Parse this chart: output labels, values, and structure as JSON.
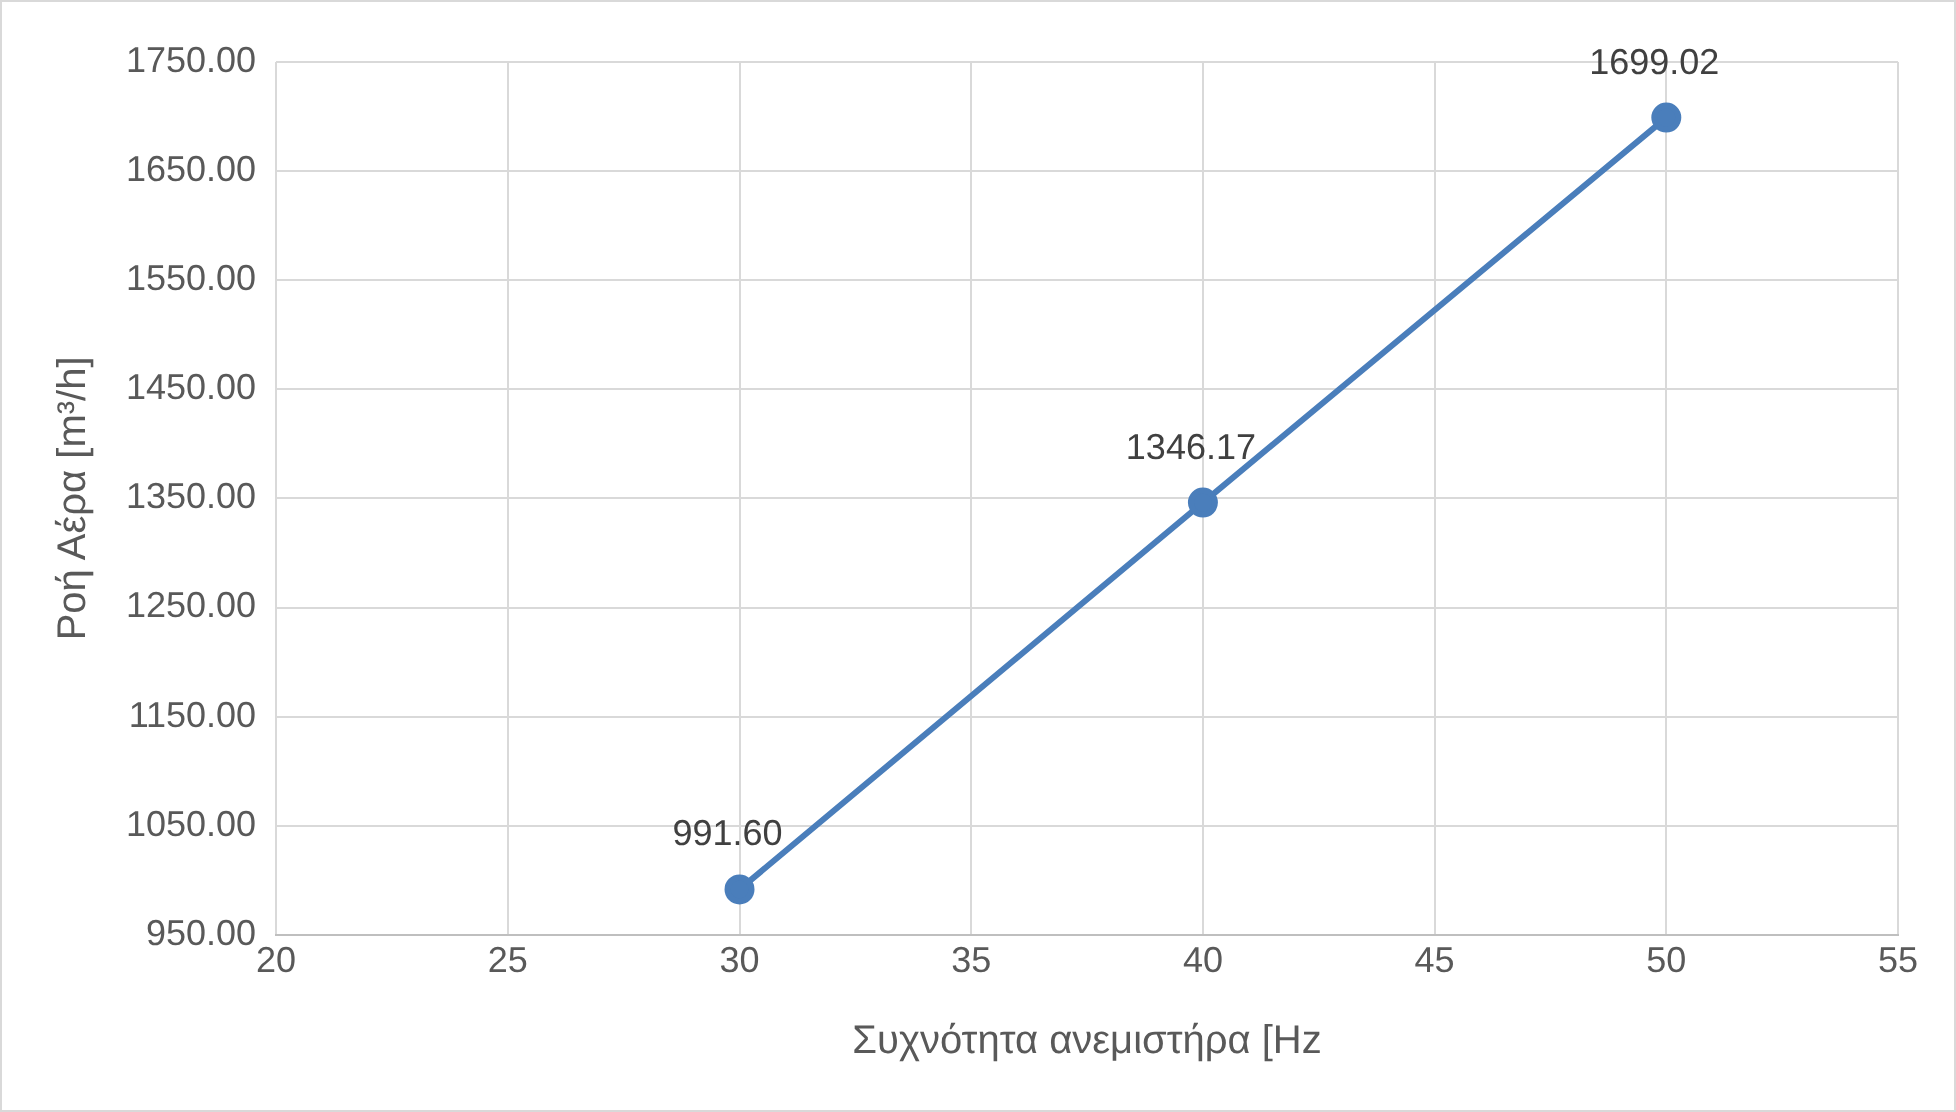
{
  "chart_data": {
    "type": "line",
    "xlabel": "Συχνότητα ανεμιστήρα [Hz",
    "ylabel": "Ροή Αέρα [m³/h]",
    "x": [
      30,
      40,
      50
    ],
    "series": [
      {
        "color": "#4a7ebb",
        "values": [
          991.6,
          1346.17,
          1699.02
        ],
        "value_labels": [
          "991.60",
          "1346.17",
          "1699.02"
        ]
      }
    ],
    "xlim": [
      20,
      55
    ],
    "xticks": [
      20,
      25,
      30,
      35,
      40,
      45,
      50,
      55
    ],
    "ylim": [
      950,
      1750
    ],
    "yticks": [
      {
        "value": 950,
        "label": "950.00"
      },
      {
        "value": 1050,
        "label": "1050.00"
      },
      {
        "value": 1150,
        "label": "1150.00"
      },
      {
        "value": 1250,
        "label": "1250.00"
      },
      {
        "value": 1350,
        "label": "1350.00"
      },
      {
        "value": 1450,
        "label": "1450.00"
      },
      {
        "value": 1550,
        "label": "1550.00"
      },
      {
        "value": 1650,
        "label": "1650.00"
      },
      {
        "value": 1750,
        "label": "1750.00"
      }
    ],
    "grid": true,
    "legend": false,
    "marker": "circle",
    "line_style": "solid"
  }
}
